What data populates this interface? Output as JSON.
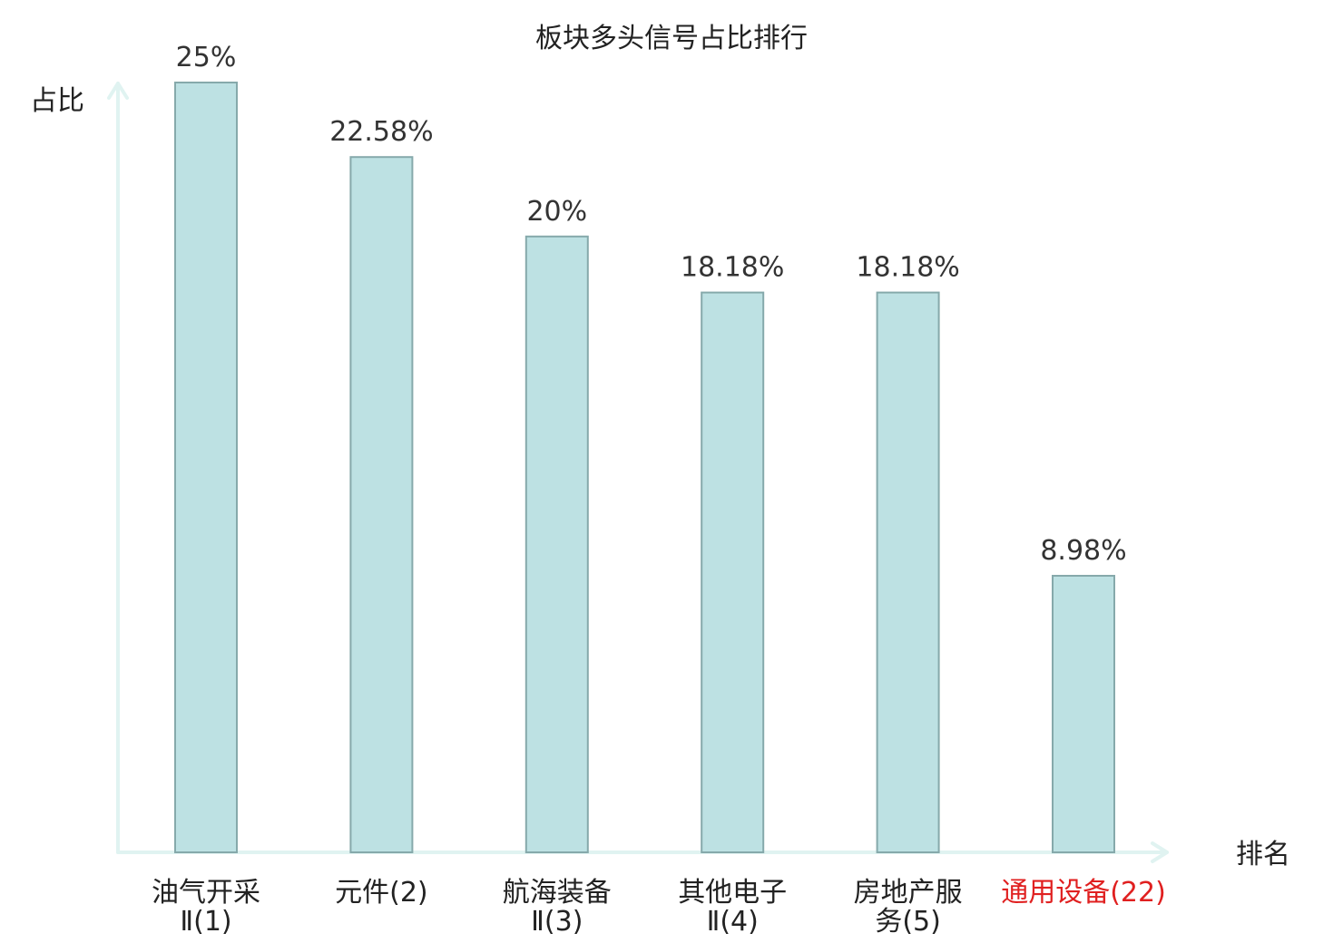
{
  "chart_data": {
    "type": "bar",
    "title": "板块多头信号占比排行",
    "ylabel": "占比",
    "xlabel": "排名",
    "categories": [
      [
        "油气开采",
        "Ⅱ(1)"
      ],
      [
        "元件(2)"
      ],
      [
        "航海装备",
        "Ⅱ(3)"
      ],
      [
        "其他电子",
        "Ⅱ(4)"
      ],
      [
        "房地产服",
        "务(5)"
      ],
      [
        "通用设备(22)"
      ]
    ],
    "values": [
      25,
      22.58,
      20,
      18.18,
      18.18,
      8.98
    ],
    "value_labels": [
      "25%",
      "22.58%",
      "20%",
      "18.18%",
      "18.18%",
      "8.98%"
    ],
    "highlight_index": 5,
    "ylim": [
      0,
      25
    ],
    "grid": false,
    "colors": {
      "bar_fill": "#bde1e3",
      "bar_stroke": "#86a9ab",
      "axis": "#e0f3f1",
      "text": "#222222",
      "highlight_text": "#e02020"
    }
  }
}
